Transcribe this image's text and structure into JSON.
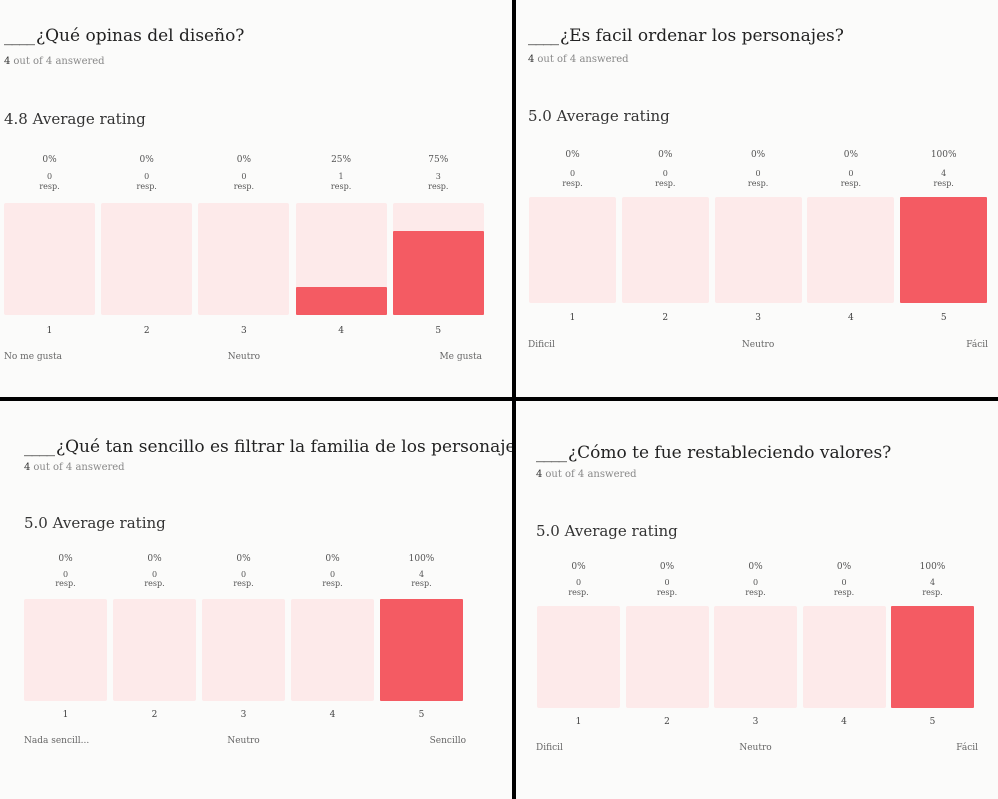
{
  "colors": {
    "bar_empty": "#fdeaea",
    "bar_fill": "#f45b63",
    "panel_bg": "#fbfbfa",
    "divider": "#000000"
  },
  "panels": [
    {
      "title_blank": "____",
      "title": "¿Qué opinas del diseño?",
      "answered_count": "4",
      "answered_text": "out of 4 answered",
      "average": "4.8 Average rating",
      "low_label": "No me gusta",
      "mid_label": "Neutro",
      "high_label": "Me gusta"
    },
    {
      "title_blank": "____",
      "title": "¿Es facil ordenar los personajes?",
      "answered_count": "4",
      "answered_text": "out of 4 answered",
      "average": "5.0 Average rating",
      "low_label": "Dificil",
      "mid_label": "Neutro",
      "high_label": "Fácil"
    },
    {
      "title_blank": "____",
      "title": "¿Qué tan sencillo es filtrar la familia de los personajes?",
      "answered_count": "4",
      "answered_text": "out of 4 answered",
      "average": "5.0 Average rating",
      "low_label": "Nada sencill...",
      "mid_label": "Neutro",
      "high_label": "Sencillo"
    },
    {
      "title_blank": "____",
      "title": "¿Cómo te fue restableciendo valores?",
      "answered_count": "4",
      "answered_text": "out of 4 answered",
      "average": "5.0 Average rating",
      "low_label": "Dificil",
      "mid_label": "Neutro",
      "high_label": "Fácil"
    }
  ],
  "chart_data": [
    {
      "type": "bar",
      "title": "¿Qué opinas del diseño?",
      "categories": [
        "1",
        "2",
        "3",
        "4",
        "5"
      ],
      "percent_labels": [
        "0%",
        "0%",
        "0%",
        "25%",
        "75%"
      ],
      "values": [
        0,
        0,
        0,
        1,
        3
      ],
      "percents": [
        0,
        0,
        0,
        25,
        75
      ],
      "unit_label": "resp.",
      "ylim": [
        0,
        4
      ]
    },
    {
      "type": "bar",
      "title": "¿Es facil ordenar los personajes?",
      "categories": [
        "1",
        "2",
        "3",
        "4",
        "5"
      ],
      "percent_labels": [
        "0%",
        "0%",
        "0%",
        "0%",
        "100%"
      ],
      "values": [
        0,
        0,
        0,
        0,
        4
      ],
      "percents": [
        0,
        0,
        0,
        0,
        100
      ],
      "unit_label": "resp.",
      "ylim": [
        0,
        4
      ]
    },
    {
      "type": "bar",
      "title": "¿Qué tan sencillo es filtrar la familia de los personajes?",
      "categories": [
        "1",
        "2",
        "3",
        "4",
        "5"
      ],
      "percent_labels": [
        "0%",
        "0%",
        "0%",
        "0%",
        "100%"
      ],
      "values": [
        0,
        0,
        0,
        0,
        4
      ],
      "percents": [
        0,
        0,
        0,
        0,
        100
      ],
      "unit_label": "resp.",
      "ylim": [
        0,
        4
      ]
    },
    {
      "type": "bar",
      "title": "¿Cómo te fue restableciendo valores?",
      "categories": [
        "1",
        "2",
        "3",
        "4",
        "5"
      ],
      "percent_labels": [
        "0%",
        "0%",
        "0%",
        "0%",
        "100%"
      ],
      "values": [
        0,
        0,
        0,
        0,
        4
      ],
      "percents": [
        0,
        0,
        0,
        0,
        100
      ],
      "unit_label": "resp.",
      "ylim": [
        0,
        4
      ]
    }
  ]
}
